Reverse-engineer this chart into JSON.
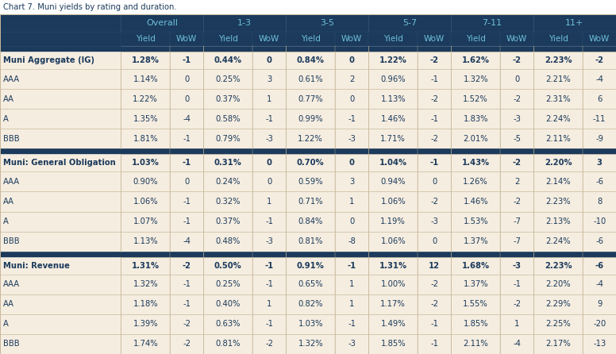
{
  "title": "Chart 7. Muni yields by rating and duration.",
  "header_bg": "#1b3a5c",
  "header_text": "#6fc0d8",
  "row_bg_light": "#f5ede0",
  "section_header_text": "#1b3a5c",
  "data_text_normal": "#1b3a5c",
  "grid_line": "#c8b89a",
  "col_groups": [
    "Overall",
    "1-3",
    "3-5",
    "5-7",
    "7-11",
    "11+"
  ],
  "sections": [
    {
      "header": "Muni Aggregate (IG)",
      "rows": [
        {
          "label": "AAA",
          "data": [
            "1.14%",
            "0",
            "0.25%",
            "3",
            "0.61%",
            "2",
            "0.96%",
            "-1",
            "1.32%",
            "0",
            "2.21%",
            "-4"
          ]
        },
        {
          "label": "AA",
          "data": [
            "1.22%",
            "0",
            "0.37%",
            "1",
            "0.77%",
            "0",
            "1.13%",
            "-2",
            "1.52%",
            "-2",
            "2.31%",
            "6"
          ]
        },
        {
          "label": "A",
          "data": [
            "1.35%",
            "-4",
            "0.58%",
            "-1",
            "0.99%",
            "-1",
            "1.46%",
            "-1",
            "1.83%",
            "-3",
            "2.24%",
            "-11"
          ]
        },
        {
          "label": "BBB",
          "data": [
            "1.81%",
            "-1",
            "0.79%",
            "-3",
            "1.22%",
            "-3",
            "1.71%",
            "-2",
            "2.01%",
            "-5",
            "2.11%",
            "-9"
          ]
        }
      ],
      "header_data": [
        "1.28%",
        "-1",
        "0.44%",
        "0",
        "0.84%",
        "0",
        "1.22%",
        "-2",
        "1.62%",
        "-2",
        "2.23%",
        "-2"
      ]
    },
    {
      "header": "Muni: General Obligation",
      "rows": [
        {
          "label": "AAA",
          "data": [
            "0.90%",
            "0",
            "0.24%",
            "0",
            "0.59%",
            "3",
            "0.94%",
            "0",
            "1.26%",
            "2",
            "2.14%",
            "-6"
          ]
        },
        {
          "label": "AA",
          "data": [
            "1.06%",
            "-1",
            "0.32%",
            "1",
            "0.71%",
            "1",
            "1.06%",
            "-2",
            "1.46%",
            "-2",
            "2.23%",
            "8"
          ]
        },
        {
          "label": "A",
          "data": [
            "1.07%",
            "-1",
            "0.37%",
            "-1",
            "0.84%",
            "0",
            "1.19%",
            "-3",
            "1.53%",
            "-7",
            "2.13%",
            "-10"
          ]
        },
        {
          "label": "BBB",
          "data": [
            "1.13%",
            "-4",
            "0.48%",
            "-3",
            "0.81%",
            "-8",
            "1.06%",
            "0",
            "1.37%",
            "-7",
            "2.24%",
            "-6"
          ]
        }
      ],
      "header_data": [
        "1.03%",
        "-1",
        "0.31%",
        "0",
        "0.70%",
        "0",
        "1.04%",
        "-1",
        "1.43%",
        "-2",
        "2.20%",
        "3"
      ]
    },
    {
      "header": "Muni: Revenue",
      "rows": [
        {
          "label": "AAA",
          "data": [
            "1.32%",
            "-1",
            "0.25%",
            "-1",
            "0.65%",
            "1",
            "1.00%",
            "-2",
            "1.37%",
            "-1",
            "2.20%",
            "-4"
          ]
        },
        {
          "label": "AA",
          "data": [
            "1.18%",
            "-1",
            "0.40%",
            "1",
            "0.82%",
            "1",
            "1.17%",
            "-2",
            "1.55%",
            "-2",
            "2.29%",
            "9"
          ]
        },
        {
          "label": "A",
          "data": [
            "1.39%",
            "-2",
            "0.63%",
            "-1",
            "1.03%",
            "-1",
            "1.49%",
            "-1",
            "1.85%",
            "1",
            "2.25%",
            "-20"
          ]
        },
        {
          "label": "BBB",
          "data": [
            "1.74%",
            "-2",
            "0.81%",
            "-2",
            "1.32%",
            "-3",
            "1.85%",
            "-1",
            "2.11%",
            "-4",
            "2.17%",
            "-13"
          ]
        }
      ],
      "header_data": [
        "1.31%",
        "-2",
        "0.50%",
        "-1",
        "0.91%",
        "-1",
        "1.31%",
        "12",
        "1.68%",
        "-3",
        "2.23%",
        "-6"
      ]
    }
  ]
}
